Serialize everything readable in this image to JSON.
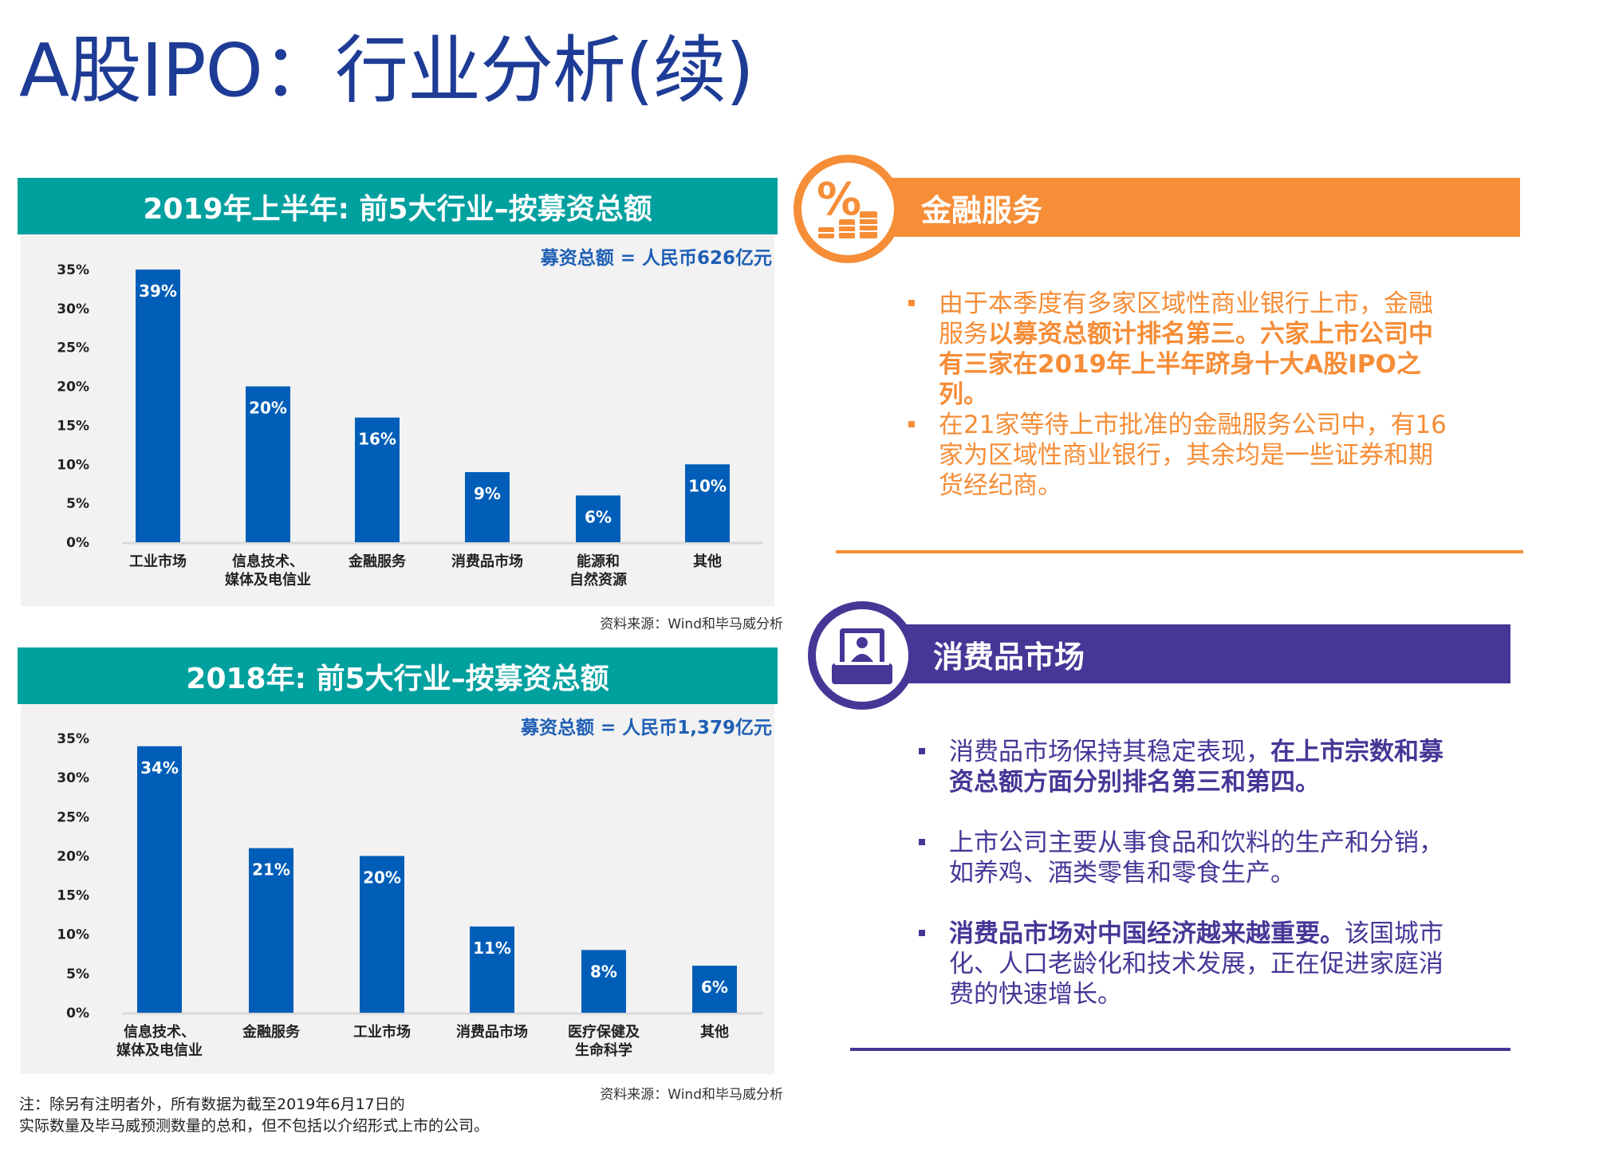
{
  "title": "A股IPO：行业分析(续)",
  "charts": [
    {
      "header": "2019年上半年: 前5大行业–按募资总额",
      "total": "募资总额 = 人民币626亿元",
      "source": "资料来源：Wind和毕马威分析"
    },
    {
      "header": "2018年: 前5大行业–按募资总额",
      "total": "募资总额 = 人民币1,379亿元",
      "source": "资料来源：Wind和毕马威分析"
    }
  ],
  "chart_data": [
    {
      "type": "bar",
      "title": "2019年上半年: 前5大行业–按募资总额",
      "categories": [
        "工业市场",
        "信息技术、\n媒体及电信业",
        "金融服务",
        "消费品市场",
        "能源和\n自然资源",
        "其他"
      ],
      "values": [
        39,
        20,
        16,
        9,
        6,
        10
      ],
      "data_labels": [
        "39%",
        "20%",
        "16%",
        "9%",
        "6%",
        "10%"
      ],
      "yticks": [
        "0%",
        "5%",
        "10%",
        "15%",
        "20%",
        "25%",
        "30%",
        "35%"
      ],
      "ylim": [
        0,
        35
      ],
      "color": "#005eb8",
      "grid": false
    },
    {
      "type": "bar",
      "title": "2018年: 前5大行业–按募资总额",
      "categories": [
        "信息技术、\n媒体及电信业",
        "金融服务",
        "工业市场",
        "消费品市场",
        "医疗保健及\n生命科学",
        "其他"
      ],
      "values": [
        34,
        21,
        20,
        11,
        8,
        6
      ],
      "data_labels": [
        "34%",
        "21%",
        "20%",
        "11%",
        "8%",
        "6%"
      ],
      "yticks": [
        "0%",
        "5%",
        "10%",
        "15%",
        "20%",
        "25%",
        "30%",
        "35%"
      ],
      "ylim": [
        0,
        35
      ],
      "color": "#005eb8",
      "grid": false
    }
  ],
  "note": {
    "line1": "注：除另有注明者外，所有数据为截至2019年6月17日的",
    "line2": "实际数量及毕马威预测数量的总和，但不包括以介绍形式上市的公司。"
  },
  "finance": {
    "title": "金融服务",
    "color": "#f68d37",
    "icon": "percent-coins-icon",
    "bullets": [
      {
        "normal": "由于本季度有多家区域性商业银行上市，金融服务",
        "bold": "以募资总额计排名第三。六家上市公司中有三家在2019年上半年跻身十大A股IPO之列。",
        "after": ""
      },
      {
        "normal": "在21家等待上市批准的金融服务公司中，有16家为区域性商业银行，其余均是一些证券和期货经纪商。",
        "bold": "",
        "after": ""
      }
    ]
  },
  "consumer": {
    "title": "消费品市场",
    "color": "#483697",
    "icon": "shopkeeper-counter-icon",
    "bullets": [
      {
        "before": "消费品市场保持其稳定表现，",
        "bold": "在上市宗数和募资总额方面分别排名第三和第四。",
        "after": ""
      },
      {
        "before": "上市公司主要从事食品和饮料的生产和分销，如养鸡、酒类零售和零食生产。",
        "bold": "",
        "after": ""
      },
      {
        "before": "",
        "bold": "消费品市场对中国经济越来越重要。",
        "after": "该国城市化、人口老龄化和技术发展，正在促进家庭消费的快速增长。"
      }
    ]
  }
}
